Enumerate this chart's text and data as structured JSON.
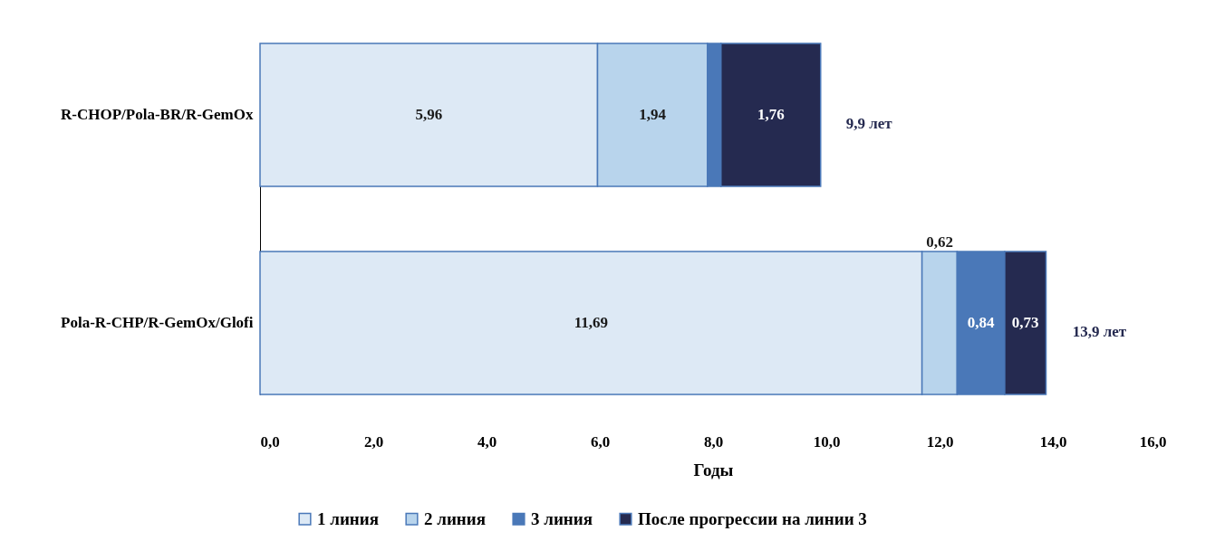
{
  "chart_data": {
    "type": "bar",
    "orientation": "horizontal",
    "stacked": true,
    "xlabel": "Годы",
    "categories": [
      "R-CHOP/Pola-BR/R-GemOx",
      "Pola-R-CHP/R-GemOx/Glofi"
    ],
    "series": [
      {
        "name": "1 линия",
        "color": "#dde9f5",
        "values": [
          5.96,
          11.69
        ],
        "value_labels": [
          "5,96",
          "11,69"
        ]
      },
      {
        "name": "2 линия",
        "color": "#b8d4ec",
        "values": [
          1.94,
          0.62
        ],
        "value_labels": [
          "1,94",
          "0,62"
        ]
      },
      {
        "name": "3 линия",
        "color": "#4a78b8",
        "values": [
          0.24,
          0.84
        ],
        "value_labels": [
          null,
          "0,84"
        ]
      },
      {
        "name": "После прогрессии на линии 3",
        "color": "#252a50",
        "values": [
          1.76,
          0.73
        ],
        "value_labels": [
          "1,76",
          "0,73"
        ]
      }
    ],
    "xlim": [
      0,
      16
    ],
    "xticks": [
      {
        "value": 0,
        "label": "0,0"
      },
      {
        "value": 2,
        "label": "2,0"
      },
      {
        "value": 4,
        "label": "4,0"
      },
      {
        "value": 6,
        "label": "6,0"
      },
      {
        "value": 8,
        "label": "8,0"
      },
      {
        "value": 10,
        "label": "10,0"
      },
      {
        "value": 12,
        "label": "12,0"
      },
      {
        "value": 14,
        "label": "14,0"
      },
      {
        "value": 16,
        "label": "16,0"
      }
    ],
    "annotations": [
      {
        "text": "9,9 лет",
        "x": 9.9,
        "y": "R-CHOP/Pola-BR/R-GemOx"
      },
      {
        "text": "13,9 лет",
        "x": 13.9,
        "y": "Pola-R-CHP/R-GemOx/Glofi"
      }
    ],
    "grid": false,
    "legend": "bottom"
  }
}
